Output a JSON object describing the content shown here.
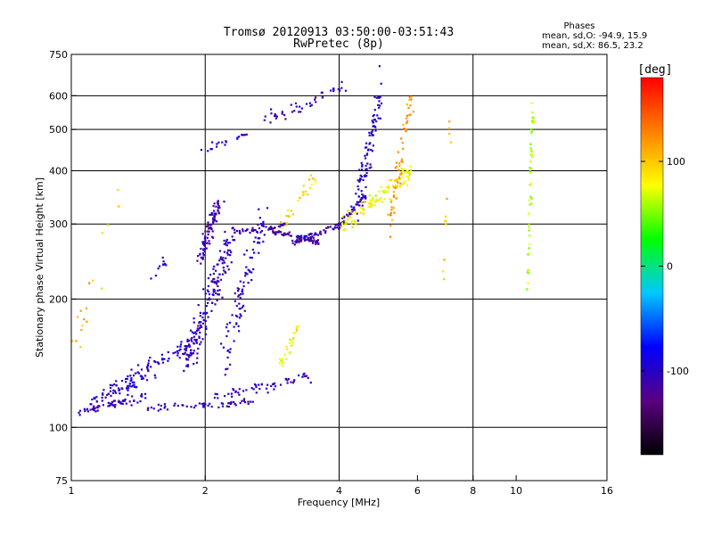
{
  "chart_data": {
    "type": "scatter",
    "title": "Tromsø 20120913 03:50:00-03:51:43",
    "subtitle": "RwPretec (8p)",
    "xlabel": "Frequency [MHz]",
    "ylabel": "Stationary phase Virtual Height [km]",
    "x_scale": "log",
    "y_scale": "log",
    "xlim": [
      1,
      16
    ],
    "ylim": [
      75,
      750
    ],
    "x_ticks": [
      1,
      2,
      4,
      6,
      8,
      10,
      16
    ],
    "y_ticks": [
      75,
      100,
      200,
      300,
      400,
      500,
      600,
      750
    ],
    "x_gridlines": [
      2,
      4,
      8
    ],
    "y_gridlines": [
      100,
      200,
      300,
      400,
      500,
      600
    ],
    "info": {
      "heading": "Phases",
      "line1": "mean, sd,O: -94.9, 15.9",
      "line2": "mean, sd,X:  86.5, 23.2"
    },
    "colorbar": {
      "label": "[deg]",
      "min": -180,
      "max": 180,
      "ticks": [
        100,
        0,
        -100
      ],
      "colors": [
        "#000000",
        "#5a0080",
        "#0000ff",
        "#00c8ff",
        "#00ff00",
        "#ffff00",
        "#ff8000",
        "#ff0000"
      ]
    },
    "series": [
      {
        "name": "O",
        "color_hex": "#1e3cff",
        "segments": [
          {
            "f0": 1.02,
            "f1": 1.45,
            "h0": 108,
            "h1": 118,
            "n": 60,
            "sf": 0.03,
            "sh": 0.02,
            "ph": -105
          },
          {
            "f0": 1.1,
            "f1": 1.55,
            "h0": 115,
            "h1": 132,
            "n": 50,
            "sf": 0.03,
            "sh": 0.025,
            "ph": -100
          },
          {
            "f0": 1.2,
            "f1": 1.9,
            "h0": 122,
            "h1": 160,
            "n": 70,
            "sf": 0.035,
            "sh": 0.03,
            "ph": -100
          },
          {
            "f0": 1.5,
            "f1": 2.6,
            "h0": 110,
            "h1": 115,
            "n": 55,
            "sf": 0.03,
            "sh": 0.02,
            "ph": -105
          },
          {
            "f0": 1.8,
            "f1": 2.3,
            "h0": 140,
            "h1": 280,
            "n": 180,
            "sf": 0.03,
            "sh": 0.1,
            "ph": -105
          },
          {
            "f0": 1.95,
            "f1": 2.15,
            "h0": 250,
            "h1": 340,
            "n": 90,
            "sf": 0.02,
            "sh": 0.05,
            "ph": -110
          },
          {
            "f0": 2.2,
            "f1": 2.7,
            "h0": 140,
            "h1": 320,
            "n": 90,
            "sf": 0.03,
            "sh": 0.09,
            "ph": -100
          },
          {
            "f0": 2.3,
            "f1": 3.0,
            "h0": 285,
            "h1": 298,
            "n": 40,
            "sf": 0.02,
            "sh": 0.015,
            "ph": -110
          },
          {
            "f0": 2.8,
            "f1": 3.6,
            "h0": 290,
            "h1": 272,
            "n": 60,
            "sf": 0.02,
            "sh": 0.015,
            "ph": -115
          },
          {
            "f0": 3.1,
            "f1": 4.1,
            "h0": 270,
            "h1": 300,
            "n": 60,
            "sf": 0.02,
            "sh": 0.02,
            "ph": -110
          },
          {
            "f0": 4.0,
            "f1": 4.6,
            "h0": 300,
            "h1": 350,
            "n": 40,
            "sf": 0.015,
            "sh": 0.02,
            "ph": -105
          },
          {
            "f0": 4.4,
            "f1": 5.0,
            "h0": 340,
            "h1": 620,
            "n": 90,
            "sf": 0.02,
            "sh": 0.1,
            "ph": -100
          },
          {
            "f0": 2.1,
            "f1": 3.5,
            "h0": 118,
            "h1": 132,
            "n": 55,
            "sf": 0.03,
            "sh": 0.03,
            "ph": -105
          },
          {
            "f0": 2.7,
            "f1": 4.1,
            "h0": 525,
            "h1": 625,
            "n": 45,
            "sf": 0.02,
            "sh": 0.03,
            "ph": -110
          },
          {
            "f0": 2.0,
            "f1": 2.5,
            "h0": 450,
            "h1": 490,
            "n": 20,
            "sf": 0.02,
            "sh": 0.02,
            "ph": -105
          },
          {
            "f0": 1.5,
            "f1": 1.65,
            "h0": 220,
            "h1": 250,
            "n": 10,
            "sf": 0.01,
            "sh": 0.03,
            "ph": -100
          }
        ]
      },
      {
        "name": "X",
        "color_hex": "#ffdc00",
        "segments": [
          {
            "f0": 4.0,
            "f1": 5.8,
            "h0": 295,
            "h1": 400,
            "n": 110,
            "sf": 0.02,
            "sh": 0.05,
            "ph": 80
          },
          {
            "f0": 5.2,
            "f1": 5.8,
            "h0": 300,
            "h1": 600,
            "n": 60,
            "sf": 0.02,
            "sh": 0.1,
            "ph": 120
          },
          {
            "f0": 3.0,
            "f1": 3.5,
            "h0": 300,
            "h1": 380,
            "n": 25,
            "sf": 0.02,
            "sh": 0.04,
            "ph": 90
          },
          {
            "f0": 2.95,
            "f1": 3.25,
            "h0": 140,
            "h1": 175,
            "n": 30,
            "sf": 0.01,
            "sh": 0.04,
            "ph": 80
          },
          {
            "f0": 10.6,
            "f1": 10.9,
            "h0": 200,
            "h1": 600,
            "n": 45,
            "sf": 0.008,
            "sh": 0.12,
            "ph": 60
          },
          {
            "f0": 6.8,
            "f1": 7.2,
            "h0": 200,
            "h1": 640,
            "n": 12,
            "sf": 0.01,
            "sh": 0.15,
            "ph": 100
          },
          {
            "f0": 1.0,
            "f1": 1.3,
            "h0": 150,
            "h1": 350,
            "n": 18,
            "sf": 0.02,
            "sh": 0.2,
            "ph": 110
          }
        ]
      }
    ]
  }
}
